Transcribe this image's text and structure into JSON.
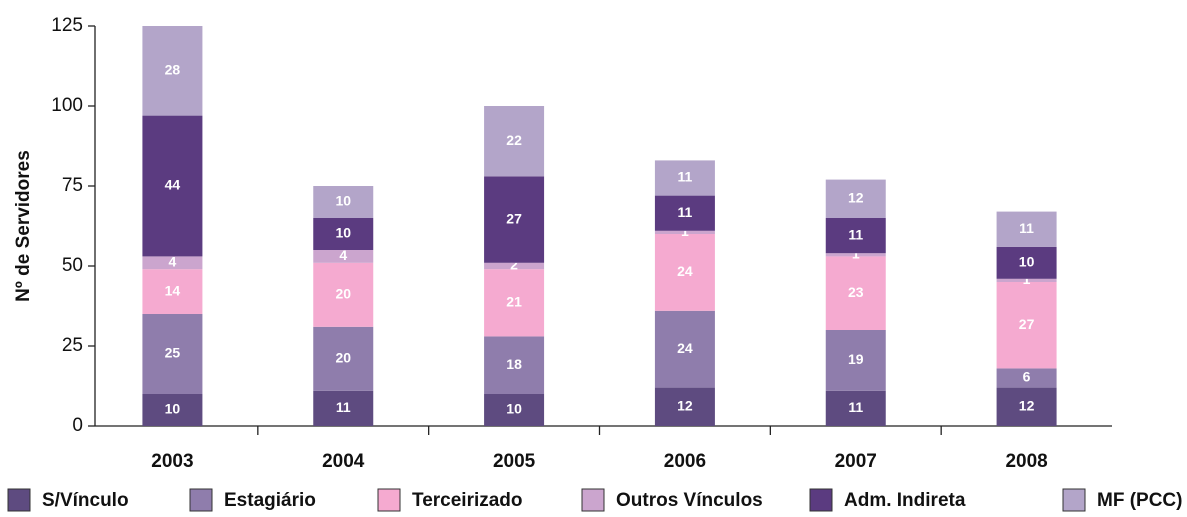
{
  "chart_data": {
    "type": "stacked_bar",
    "ylabel": "Nº de Servidores",
    "categories": [
      "2003",
      "2004",
      "2005",
      "2006",
      "2007",
      "2008"
    ],
    "series": [
      {
        "name": "S/Vínculo",
        "color": "#5e4b80",
        "values": [
          10,
          11,
          10,
          12,
          11,
          12
        ]
      },
      {
        "name": "Estagiário",
        "color": "#8f7dac",
        "values": [
          25,
          20,
          18,
          24,
          19,
          6
        ]
      },
      {
        "name": "Terceirizado",
        "color": "#f5aad0",
        "values": [
          14,
          20,
          21,
          24,
          23,
          27
        ]
      },
      {
        "name": "Outros Vínculos",
        "color": "#cba5ce",
        "values": [
          4,
          4,
          2,
          1,
          1,
          1
        ]
      },
      {
        "name": "Adm. Indireta",
        "color": "#5b3b80",
        "values": [
          44,
          10,
          27,
          11,
          11,
          10
        ]
      },
      {
        "name": "MF (PCC)",
        "color": "#b3a5c9",
        "values": [
          28,
          10,
          22,
          11,
          12,
          11
        ]
      }
    ],
    "ylim": [
      0,
      125
    ],
    "yticks": [
      0,
      25,
      50,
      75,
      100,
      125
    ]
  }
}
